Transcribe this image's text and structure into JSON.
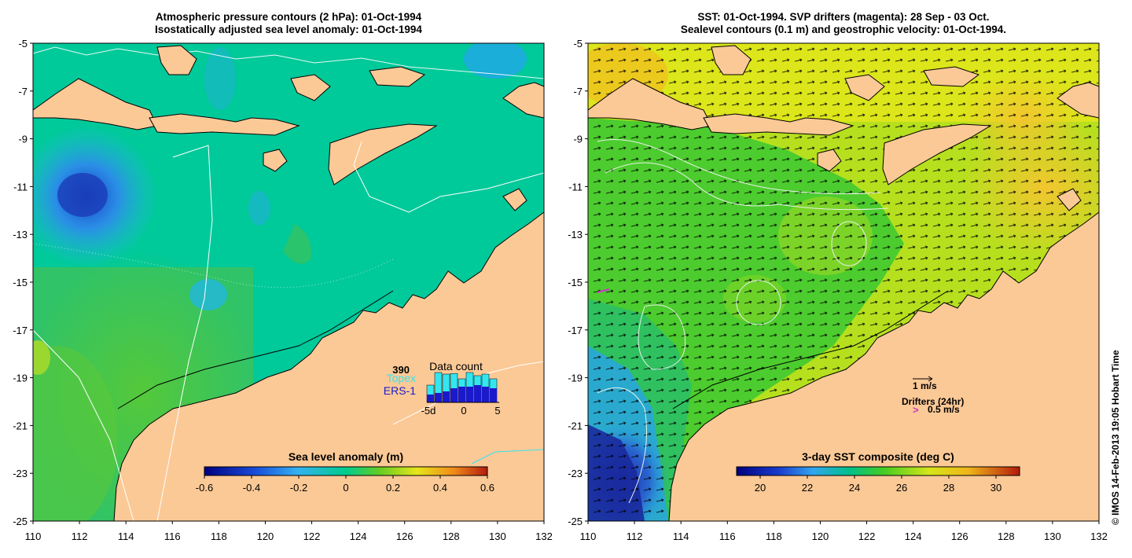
{
  "left_panel": {
    "title_line1": "Atmospheric pressure contours (2 hPa): 01-Oct-1994",
    "title_line2": "Isostatically adjusted sea level anomaly: 01-Oct-1994",
    "colorbar_label": "Sea level anomaly (m)",
    "colorbar_ticks": [
      "-0.6",
      "-0.4",
      "-0.2",
      "0",
      "0.2",
      "0.4",
      "0.6"
    ],
    "inset": {
      "max_label": "390",
      "title": "Data count",
      "series1": "Topex",
      "series2": "ERS-1",
      "xticks": [
        "-5d",
        "0",
        "5"
      ],
      "topex_fraction": [
        0.55,
        0.95,
        0.9,
        0.92,
        0.75,
        0.95,
        0.85,
        0.9,
        0.75
      ],
      "ers_fraction": [
        0.25,
        0.3,
        0.35,
        0.45,
        0.5,
        0.5,
        0.55,
        0.5,
        0.45
      ],
      "topex_color": "#33e6f0",
      "ers_color": "#1a1acc"
    }
  },
  "right_panel": {
    "title_line1": "SST: 01-Oct-1994. SVP drifters (magenta): 28 Sep - 03 Oct.",
    "title_line2": "Sealevel contours (0.1 m) and geostrophic velocity: 01-Oct-1994.",
    "colorbar_label": "3-day SST composite (deg C)",
    "colorbar_ticks": [
      "20",
      "22",
      "24",
      "26",
      "28",
      "30"
    ],
    "velocity_key": "1 m/s",
    "drifters_label": "Drifters (24hr)",
    "drifter_speed": "0.5 m/s",
    "drifter_symbol": ">",
    "drifter_color": "#cc33cc"
  },
  "axes": {
    "lat_labels": [
      "-5",
      "-7",
      "-9",
      "-11",
      "-13",
      "-15",
      "-17",
      "-19",
      "-21",
      "-23",
      "-25"
    ],
    "lon_labels": [
      "110",
      "112",
      "114",
      "116",
      "118",
      "120",
      "122",
      "124",
      "126",
      "128",
      "130",
      "132"
    ],
    "lon_range": [
      110,
      132
    ],
    "lat_range": [
      -25,
      -5
    ]
  },
  "land_color": "#fbc996",
  "credit": "© IMOS 14-Feb-2013 19:05 Hobart Time"
}
